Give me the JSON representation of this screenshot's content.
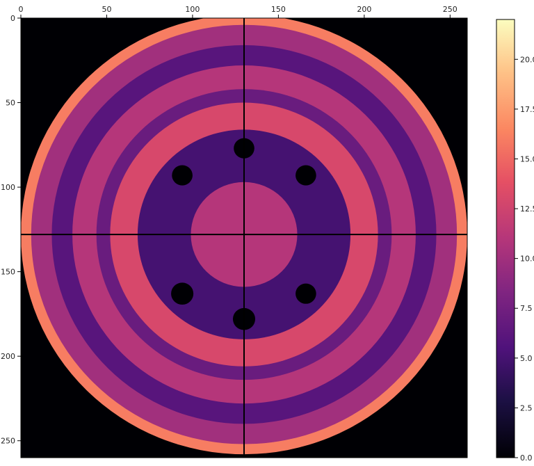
{
  "chart_data": {
    "type": "heatmap",
    "title": "",
    "xlabel": "",
    "ylabel": "",
    "x_axis_position": "top",
    "y_axis_inverted": true,
    "xlim": [
      0,
      260
    ],
    "ylim": [
      260,
      0
    ],
    "x_ticks": [
      0,
      50,
      100,
      150,
      200,
      250
    ],
    "y_ticks": [
      0,
      50,
      100,
      150,
      200,
      250
    ],
    "colormap": "magma",
    "colorbar": {
      "range": [
        0,
        22
      ],
      "ticks": [
        "0.0",
        "2.5",
        "5.0",
        "7.5",
        "10.0",
        "12.5",
        "15.0",
        "17.5",
        "20.0"
      ]
    },
    "crosshair": {
      "x": 130,
      "y": 128
    },
    "disk": {
      "center": [
        130,
        128
      ],
      "radius": 130
    },
    "rings": [
      {
        "r_inner": 124,
        "r_outer": 130,
        "value": 16
      },
      {
        "r_inner": 112,
        "r_outer": 124,
        "value": 10
      },
      {
        "r_inner": 100,
        "r_outer": 112,
        "value": 6
      },
      {
        "r_inner": 86,
        "r_outer": 100,
        "value": 11
      },
      {
        "r_inner": 78,
        "r_outer": 86,
        "value": 7
      },
      {
        "r_inner": 62,
        "r_outer": 78,
        "value": 13
      },
      {
        "r_inner": 31,
        "r_outer": 62,
        "value": 5
      },
      {
        "r_inner": 0,
        "r_outer": 31,
        "value": 11
      }
    ],
    "holes": [
      {
        "x": 130,
        "y": 77,
        "r": 6
      },
      {
        "x": 94,
        "y": 93,
        "r": 6
      },
      {
        "x": 166,
        "y": 93,
        "r": 6
      },
      {
        "x": 94,
        "y": 163,
        "r": 6.5
      },
      {
        "x": 166,
        "y": 163,
        "r": 6
      },
      {
        "x": 130,
        "y": 178,
        "r": 6.5
      }
    ]
  }
}
